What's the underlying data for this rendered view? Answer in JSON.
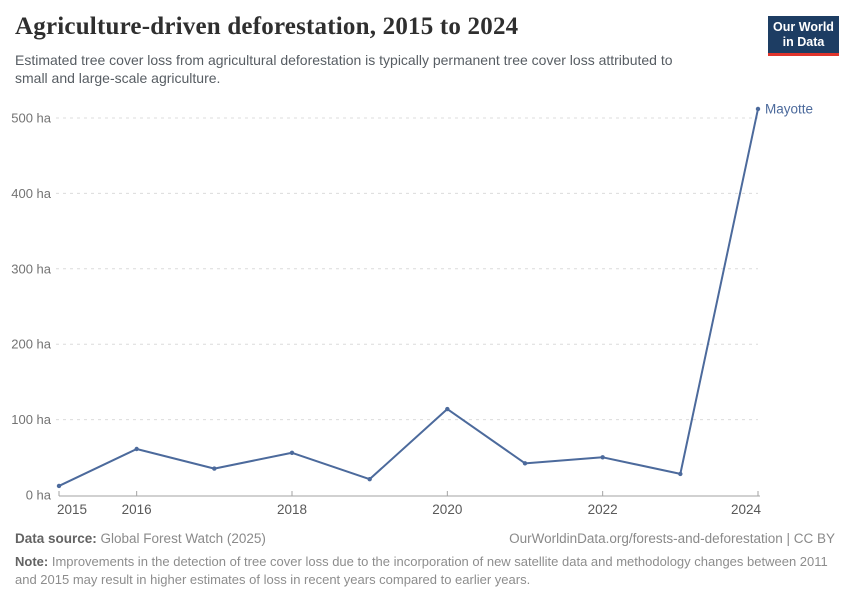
{
  "header": {
    "title": "Agriculture-driven deforestation, 2015 to 2024",
    "subtitle": "Estimated tree cover loss from agricultural deforestation is typically permanent tree cover loss attributed to small and large-scale agriculture.",
    "logo": {
      "line1": "Our World",
      "line2": "in Data"
    }
  },
  "chart_data": {
    "type": "line",
    "title": "Agriculture-driven deforestation, 2015 to 2024",
    "x": [
      2015,
      2016,
      2017,
      2018,
      2019,
      2020,
      2021,
      2022,
      2023,
      2024
    ],
    "series": [
      {
        "name": "Mayotte",
        "values": [
          12,
          61,
          35,
          56,
          21,
          114,
          42,
          50,
          28,
          512
        ],
        "color": "#4c6a9c"
      }
    ],
    "xlabel": "",
    "ylabel": "",
    "unit": "ha",
    "ylim": [
      0,
      500
    ],
    "yticks": [
      0,
      100,
      200,
      300,
      400,
      500
    ],
    "ytick_labels": [
      "0 ha",
      "100 ha",
      "200 ha",
      "300 ha",
      "400 ha",
      "500 ha"
    ],
    "xticks": [
      2015,
      2016,
      2018,
      2020,
      2022,
      2024
    ],
    "grid": "horizontal-dashed",
    "legend_position": "end-of-line-label"
  },
  "footer": {
    "datasource_label": "Data source:",
    "datasource_value": " Global Forest Watch (2025)",
    "attribution": "OurWorldinData.org/forests-and-deforestation | CC BY",
    "note_label": "Note:",
    "note_value": " Improvements in the detection of tree cover loss due to the incorporation of new satellite data and methodology changes between 2011 and 2015 may result in higher estimates of loss in recent years compared to earlier years."
  },
  "colors": {
    "line": "#4c6a9c",
    "grid": "#dcdcdc",
    "axis": "#a3a3a3",
    "ytick_text": "#737373",
    "xtick_text": "#595959",
    "logo_bg": "#1d3d63",
    "logo_red": "#e0342c"
  }
}
